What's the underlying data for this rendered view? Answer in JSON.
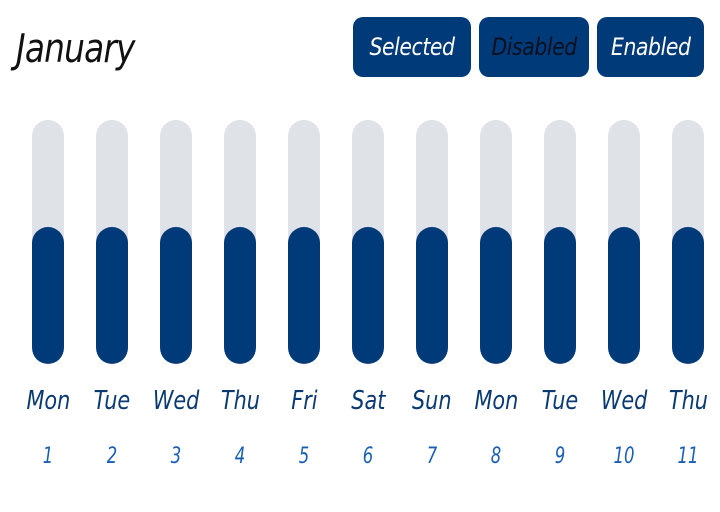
{
  "header": {
    "month": "January",
    "buttons": {
      "selected": "Selected",
      "disabled": "Disabled",
      "enabled": "Enabled"
    }
  },
  "colors": {
    "accent": "#003a78",
    "track": "#dfe3e8",
    "day_label": "#0b3a73",
    "date_label": "#1a5fb4"
  },
  "days": [
    {
      "dow": "Mon",
      "date": "1",
      "level": 0.56
    },
    {
      "dow": "Tue",
      "date": "2",
      "level": 0.56
    },
    {
      "dow": "Wed",
      "date": "3",
      "level": 0.56
    },
    {
      "dow": "Thu",
      "date": "4",
      "level": 0.56
    },
    {
      "dow": "Fri",
      "date": "5",
      "level": 0.56
    },
    {
      "dow": "Sat",
      "date": "6",
      "level": 0.56
    },
    {
      "dow": "Sun",
      "date": "7",
      "level": 0.56
    },
    {
      "dow": "Mon",
      "date": "8",
      "level": 0.56
    },
    {
      "dow": "Tue",
      "date": "9",
      "level": 0.56
    },
    {
      "dow": "Wed",
      "date": "10",
      "level": 0.56
    },
    {
      "dow": "Thu",
      "date": "11",
      "level": 0.56
    }
  ]
}
